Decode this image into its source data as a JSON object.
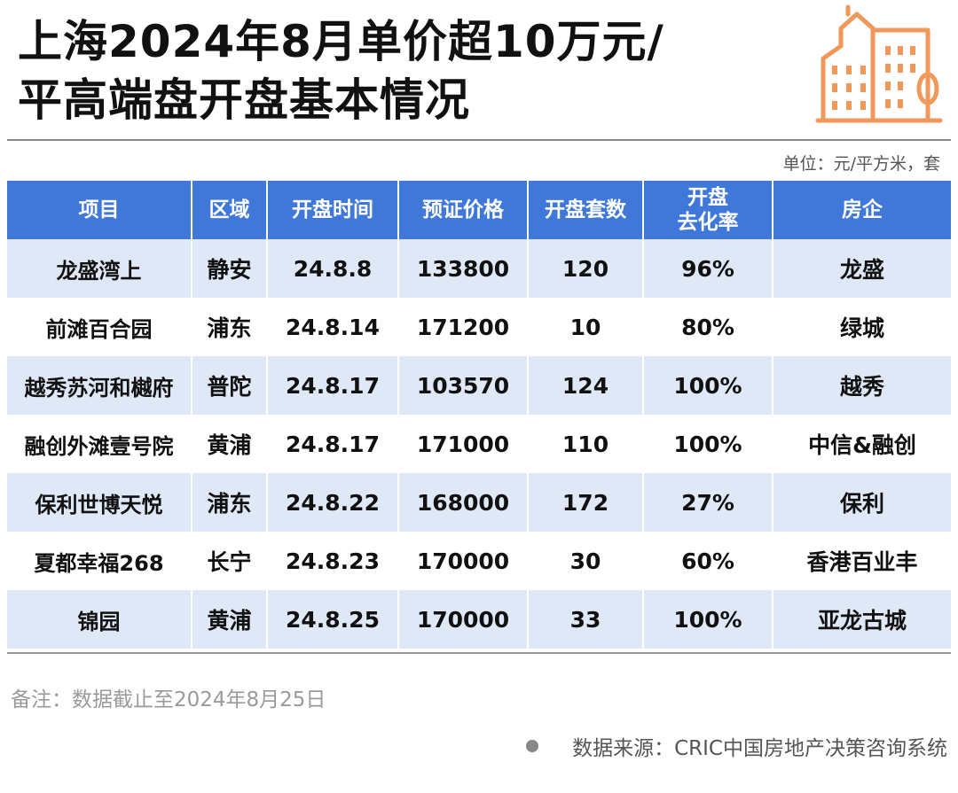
{
  "title": {
    "line1": "上海2024年8月单价超10万元/",
    "line2": "平高端盘开盘基本情况"
  },
  "logo_icon": "city-buildings-icon",
  "accent_color": "#f0975a",
  "header_color": "#3f78d8",
  "unit_text": "单位：元/平方米，套",
  "table": {
    "headers": [
      "项目",
      "区域",
      "开盘时间",
      "预证价格",
      "开盘套数",
      "开盘\n去化率",
      "房企"
    ],
    "rows": [
      [
        "龙盛湾上",
        "静安",
        "24.8.8",
        "133800",
        "120",
        "96%",
        "龙盛"
      ],
      [
        "前滩百合园",
        "浦东",
        "24.8.14",
        "171200",
        "10",
        "80%",
        "绿城"
      ],
      [
        "越秀苏河和樾府",
        "普陀",
        "24.8.17",
        "103570",
        "124",
        "100%",
        "越秀"
      ],
      [
        "融创外滩壹号院",
        "黄浦",
        "24.8.17",
        "171000",
        "110",
        "100%",
        "中信&融创"
      ],
      [
        "保利世博天悦",
        "浦东",
        "24.8.22",
        "168000",
        "172",
        "27%",
        "保利"
      ],
      [
        "夏都幸福268",
        "长宁",
        "24.8.23",
        "170000",
        "30",
        "60%",
        "香港百业丰"
      ],
      [
        "锦园",
        "黄浦",
        "24.8.25",
        "170000",
        "33",
        "100%",
        "亚龙古城"
      ]
    ]
  },
  "note": "备注：数据截止至2024年8月25日",
  "source": "数据来源：CRIC中国房地产决策咨询系统"
}
